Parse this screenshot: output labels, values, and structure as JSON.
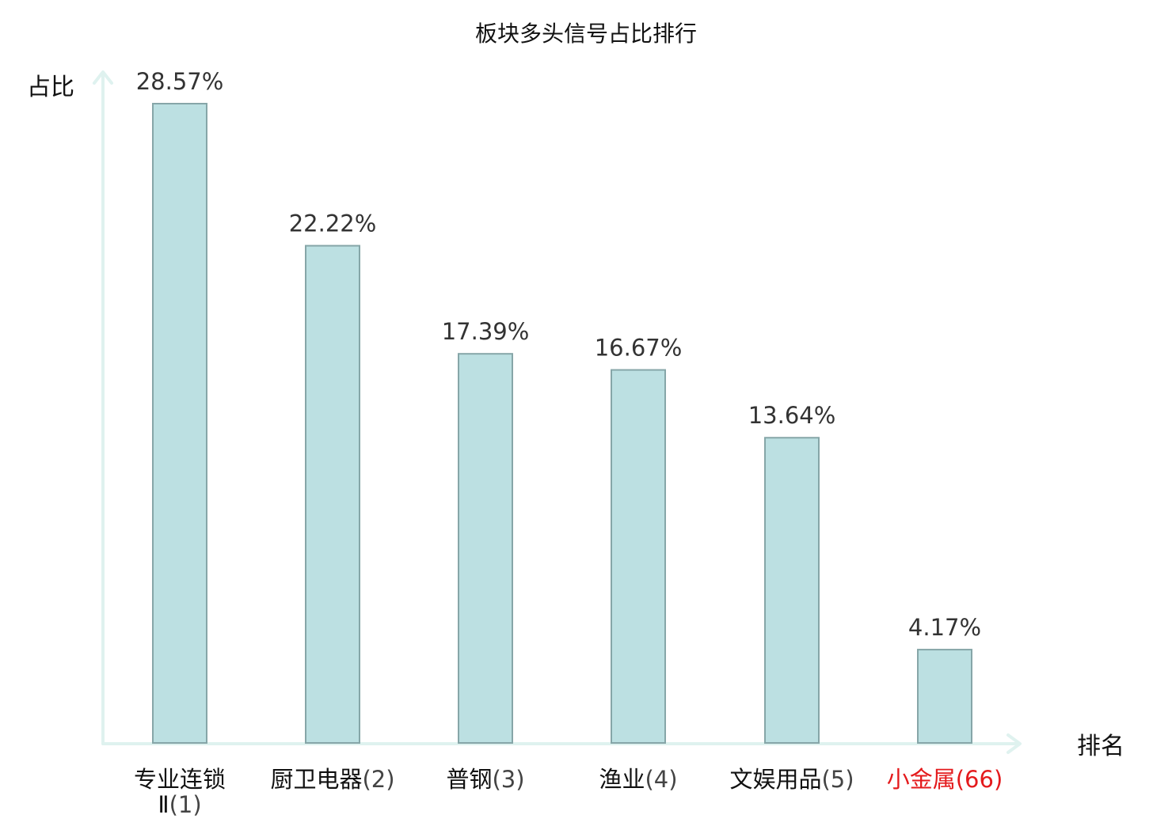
{
  "colors": {
    "bar_fill": "#bce0e2",
    "bar_stroke": "#86a6a8",
    "axis": "#dff2ef",
    "text": "#333333",
    "highlight": "#e41a1c"
  },
  "chart_data": {
    "type": "bar",
    "title": "板块多头信号占比排行",
    "ylabel": "占比",
    "xlabel": "排名",
    "grid": false,
    "ylim": [
      0,
      31.5
    ],
    "categories": [
      {
        "name_lines": [
          "专业连锁",
          "Ⅱ"
        ],
        "rank": "(1)",
        "highlight": false
      },
      {
        "name_lines": [
          "厨卫电器"
        ],
        "rank": "(2)",
        "highlight": false
      },
      {
        "name_lines": [
          "普钢"
        ],
        "rank": "(3)",
        "highlight": false
      },
      {
        "name_lines": [
          "渔业"
        ],
        "rank": "(4)",
        "highlight": false
      },
      {
        "name_lines": [
          "文娱用品"
        ],
        "rank": "(5)",
        "highlight": false
      },
      {
        "name_lines": [
          "小金属"
        ],
        "rank": "(66)",
        "highlight": true
      }
    ],
    "values": [
      28.57,
      22.22,
      17.39,
      16.67,
      13.64,
      4.17
    ],
    "value_labels": [
      "28.57%",
      "22.22%",
      "17.39%",
      "16.67%",
      "13.64%",
      "4.17%"
    ]
  }
}
